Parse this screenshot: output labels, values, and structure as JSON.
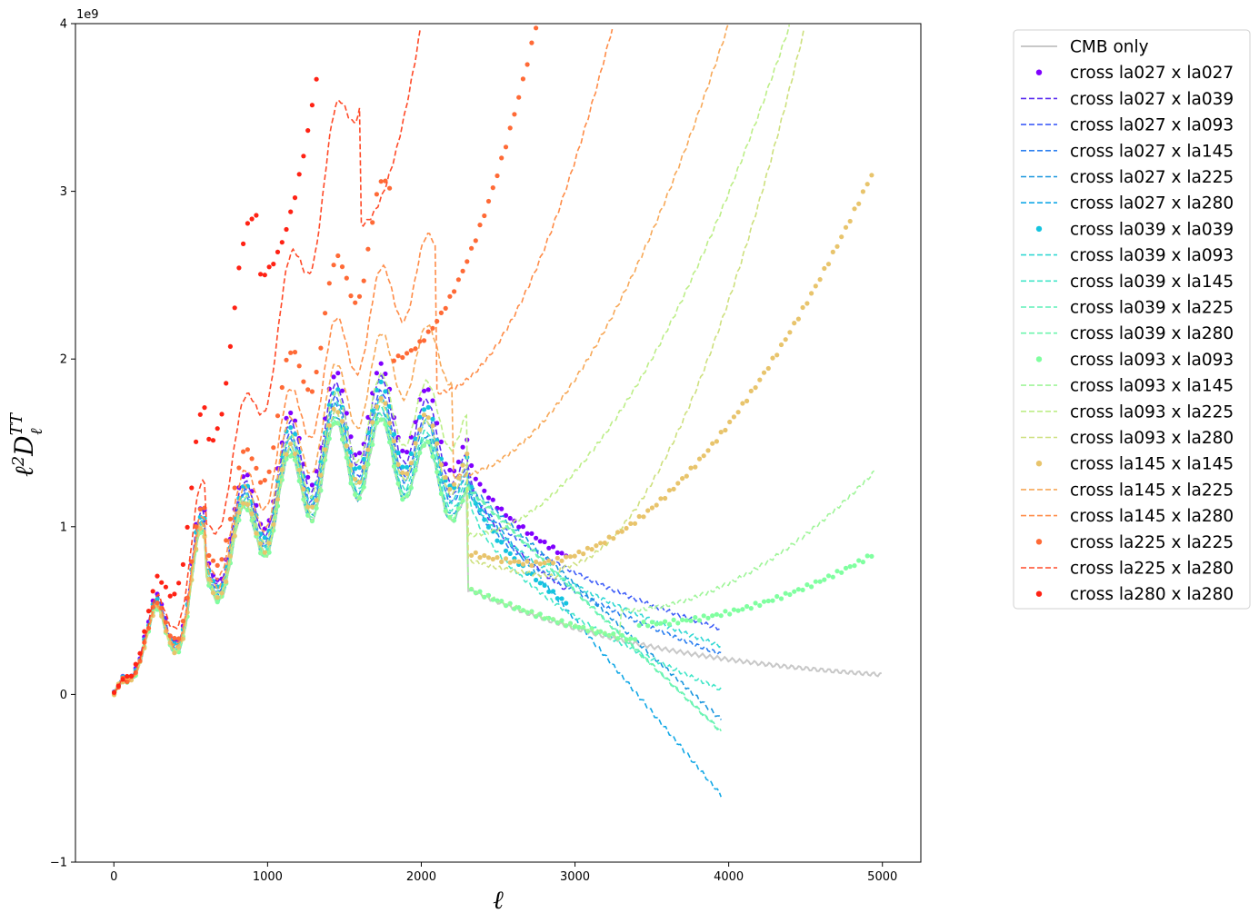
{
  "chart_data": {
    "type": "line",
    "xlabel": "ℓ",
    "ylabel": "ℓ²D_ℓ^TT",
    "offset_text": "1e9",
    "xlim": [
      -250,
      5250
    ],
    "ylim": [
      -1,
      4
    ],
    "xticks": [
      0,
      1000,
      2000,
      3000,
      4000,
      5000
    ],
    "yticks": [
      -1,
      0,
      1,
      2,
      3,
      4
    ],
    "xtick_labels": [
      "0",
      "1000",
      "2000",
      "3000",
      "4000",
      "5000"
    ],
    "ytick_labels": [
      "−1",
      "0",
      "1",
      "2",
      "3",
      "4"
    ],
    "grid": false,
    "legend_position": "outside-right",
    "series": [
      {
        "name": "CMB only",
        "style": "solid",
        "color": "#c8c8c8",
        "xmax": 5000,
        "end": 0.03,
        "curve": "cmb"
      },
      {
        "name": "cross la027 x la027",
        "style": "dots",
        "color": "#8000ff",
        "xmax": 2950,
        "end": 0.82,
        "curve": "flat",
        "high": 0.85
      },
      {
        "name": "cross la027 x la039",
        "style": "dashed",
        "color": "#5a2cf0",
        "xmax": 2950,
        "end": 0.62,
        "curve": "flat",
        "high": 0.75
      },
      {
        "name": "cross la027 x la093",
        "style": "dashed",
        "color": "#3e5df8",
        "xmax": 3950,
        "end": 0.39,
        "curve": "flat",
        "high": 0.63
      },
      {
        "name": "cross la027 x la145",
        "style": "dashed",
        "color": "#2b7ff0",
        "xmax": 3950,
        "end": 0.24,
        "curve": "flat",
        "high": 0.57
      },
      {
        "name": "cross la027 x la225",
        "style": "dashed",
        "color": "#1996de",
        "xmax": 3950,
        "end": -0.15,
        "curve": "neg",
        "high": 0.46
      },
      {
        "name": "cross la027 x la280",
        "style": "dashed",
        "color": "#12a8e6",
        "xmax": 3950,
        "end": -0.6,
        "curve": "neg",
        "high": 0.4
      },
      {
        "name": "cross la039 x la039",
        "style": "dots",
        "color": "#15c4df",
        "xmax": 2950,
        "end": 0.54,
        "curve": "flat",
        "high": 0.7
      },
      {
        "name": "cross la039 x la093",
        "style": "dashed",
        "color": "#32d8d4",
        "xmax": 3950,
        "end": 0.29,
        "curve": "flat",
        "high": 0.58
      },
      {
        "name": "cross la039 x la145",
        "style": "dashed",
        "color": "#41e6c8",
        "xmax": 3950,
        "end": 0.03,
        "curve": "flat",
        "high": 0.5
      },
      {
        "name": "cross la039 x la225",
        "style": "dashed",
        "color": "#5ef0b8",
        "xmax": 3950,
        "end": -0.22,
        "curve": "neg",
        "high": 0.44
      },
      {
        "name": "cross la039 x la280",
        "style": "dashed",
        "color": "#6ef5ae",
        "xmax": 3950,
        "end": -0.22,
        "curve": "neg",
        "high": 0.42
      },
      {
        "name": "cross la093 x la093",
        "style": "dots",
        "color": "#80ffa0",
        "xmax": 4950,
        "end": 0.84,
        "curve": "rise",
        "min": 0.42,
        "mx": 3400
      },
      {
        "name": "cross la093 x la145",
        "style": "dashed",
        "color": "#a0f59a",
        "xmax": 4950,
        "end": 1.33,
        "curve": "rise",
        "min": 0.5,
        "mx": 3300
      },
      {
        "name": "cross la093 x la225",
        "style": "dashed",
        "color": "#bdee88",
        "xmax": 4400,
        "end": 4.0,
        "curve": "rise",
        "min": 0.95,
        "mx": 2300
      },
      {
        "name": "cross la093 x la280",
        "style": "dashed",
        "color": "#cee07e",
        "xmax": 4500,
        "end": 4.0,
        "curve": "rise",
        "min": 0.76,
        "mx": 2900
      },
      {
        "name": "cross la145 x la145",
        "style": "dots",
        "color": "#e8c46c",
        "xmax": 4950,
        "end": 3.14,
        "curve": "rise",
        "min": 0.78,
        "mx": 2700
      },
      {
        "name": "cross la145 x la225",
        "style": "dashed",
        "color": "#f7a858",
        "xmax": 4000,
        "end": 4.0,
        "curve": "rise",
        "min": 1.3,
        "mx": 2200
      },
      {
        "name": "cross la145 x la280",
        "style": "dashed",
        "color": "#ff8c48",
        "xmax": 3250,
        "end": 4.0,
        "curve": "rise",
        "min": 1.8,
        "mx": 2100
      },
      {
        "name": "cross la225 x la225",
        "style": "dots",
        "color": "#ff6a36",
        "xmax": 2750,
        "end": 4.0,
        "curve": "rise",
        "min": 2.0,
        "mx": 1800
      },
      {
        "name": "cross la225 x la280",
        "style": "dashed",
        "color": "#ff4a28",
        "xmax": 2000,
        "end": 4.0,
        "curve": "rise",
        "min": 2.8,
        "mx": 1600
      },
      {
        "name": "cross la280 x la280",
        "style": "dots",
        "color": "#ff2214",
        "xmax": 1330,
        "end": 3.75,
        "curve": "rise",
        "min": 2.5,
        "mx": 950
      }
    ]
  }
}
